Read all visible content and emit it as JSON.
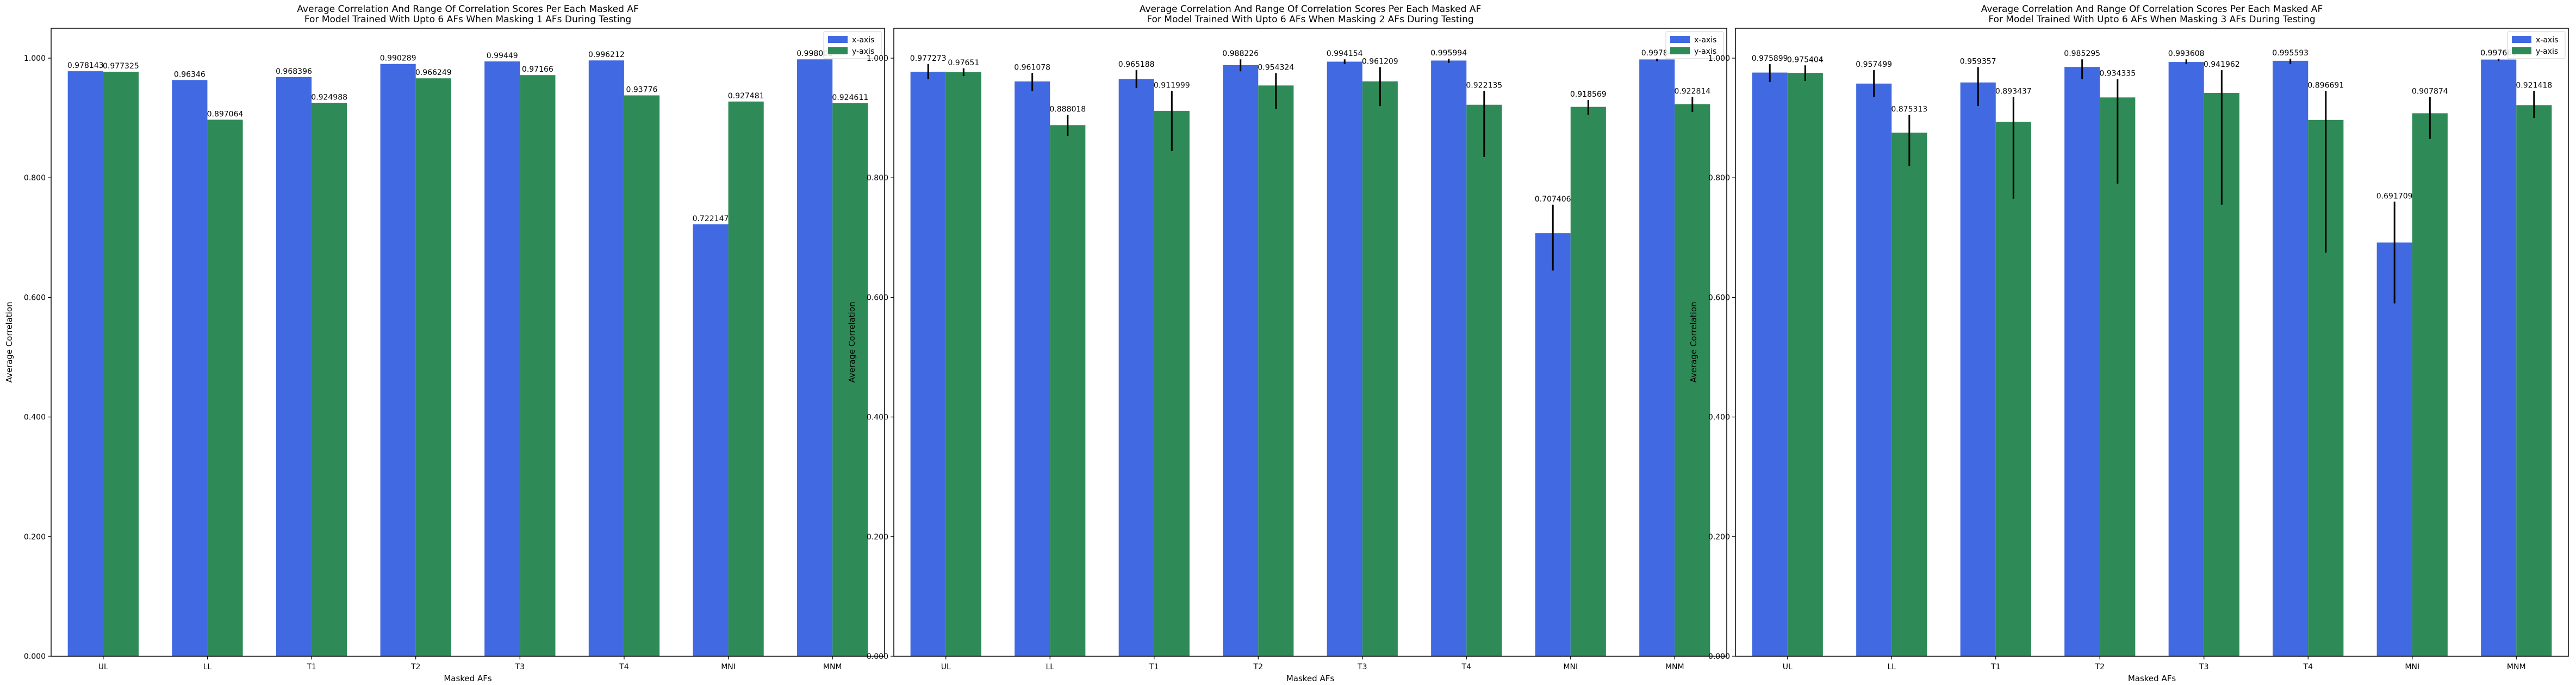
{
  "colors": {
    "x_axis": "#4169e1",
    "y_axis": "#2e8b57",
    "error_bar": "#000000",
    "axes": "#000000"
  },
  "chart_data": [
    {
      "type": "bar",
      "title_lines": [
        "Average Correlation And Range Of Correlation Scores Per Each Masked AF",
        "For Model Trained With Upto 6 AFs When Masking 1 AFs During Testing"
      ],
      "xlabel": "Masked AFs",
      "ylabel": "Average Correlation",
      "ylim": [
        0,
        1.05
      ],
      "yticks": [
        "0.000",
        "0.200",
        "0.400",
        "0.600",
        "0.800",
        "1.000"
      ],
      "ytick_values": [
        0,
        0.2,
        0.4,
        0.6,
        0.8,
        1.0
      ],
      "legend_placement": "top-right",
      "categories": [
        "UL",
        "LL",
        "T1",
        "T2",
        "T3",
        "T4",
        "MNI",
        "MNM"
      ],
      "series": [
        {
          "name": "x-axis",
          "values": [
            0.978143,
            0.96346,
            0.968396,
            0.990289,
            0.99449,
            0.996212,
            0.722147,
            0.998005
          ],
          "labels": [
            "0.978143",
            "0.96346",
            "0.968396",
            "0.990289",
            "0.99449",
            "0.996212",
            "0.722147",
            "0.998005"
          ]
        },
        {
          "name": "y-axis",
          "values": [
            0.977325,
            0.897064,
            0.924988,
            0.966249,
            0.97166,
            0.93776,
            0.927481,
            0.924611
          ],
          "labels": [
            "0.977325",
            "0.897064",
            "0.924988",
            "0.966249",
            "0.97166",
            "0.93776",
            "0.927481",
            "0.924611"
          ]
        }
      ]
    },
    {
      "type": "bar",
      "title_lines": [
        "Average Correlation And Range Of Correlation Scores Per Each Masked AF",
        "For Model Trained With Upto 6 AFs When Masking 2 AFs During Testing"
      ],
      "xlabel": "Masked AFs",
      "ylabel": "Average Correlation",
      "ylim": [
        0,
        1.05
      ],
      "yticks": [
        "0.000",
        "0.200",
        "0.400",
        "0.600",
        "0.800",
        "1.000"
      ],
      "ytick_values": [
        0,
        0.2,
        0.4,
        0.6,
        0.8,
        1.0
      ],
      "legend_placement": "top-right",
      "categories": [
        "UL",
        "LL",
        "T1",
        "T2",
        "T3",
        "T4",
        "MNI",
        "MNM"
      ],
      "series": [
        {
          "name": "x-axis",
          "values": [
            0.977273,
            0.961078,
            0.965188,
            0.988226,
            0.994154,
            0.995994,
            0.707406,
            0.99784
          ],
          "labels": [
            "0.977273",
            "0.961078",
            "0.965188",
            "0.988226",
            "0.994154",
            "0.995994",
            "0.707406",
            "0.99784"
          ],
          "err": [
            [
              0.965,
              0.99
            ],
            [
              0.945,
              0.975
            ],
            [
              0.95,
              0.98
            ],
            [
              0.978,
              0.998
            ],
            [
              0.99,
              0.998
            ],
            [
              0.992,
              0.999
            ],
            [
              0.645,
              0.755
            ],
            [
              0.995,
              0.999
            ]
          ]
        },
        {
          "name": "y-axis",
          "values": [
            0.97651,
            0.888018,
            0.911999,
            0.954324,
            0.961209,
            0.922135,
            0.918569,
            0.922814
          ],
          "labels": [
            "0.97651",
            "0.888018",
            "0.911999",
            "0.954324",
            "0.961209",
            "0.922135",
            "0.918569",
            "0.922814"
          ],
          "err": [
            [
              0.97,
              0.983
            ],
            [
              0.87,
              0.905
            ],
            [
              0.845,
              0.945
            ],
            [
              0.915,
              0.975
            ],
            [
              0.92,
              0.985
            ],
            [
              0.835,
              0.945
            ],
            [
              0.905,
              0.93
            ],
            [
              0.91,
              0.935
            ]
          ]
        }
      ]
    },
    {
      "type": "bar",
      "title_lines": [
        "Average Correlation And Range Of Correlation Scores Per Each Masked AF",
        "For Model Trained With Upto 6 AFs When Masking 3 AFs During Testing"
      ],
      "xlabel": "Masked AFs",
      "ylabel": "Average Correlation",
      "ylim": [
        0,
        1.05
      ],
      "yticks": [
        "0.000",
        "0.200",
        "0.400",
        "0.600",
        "0.800",
        "1.000"
      ],
      "ytick_values": [
        0,
        0.2,
        0.4,
        0.6,
        0.8,
        1.0
      ],
      "legend_placement": "top-right",
      "categories": [
        "UL",
        "LL",
        "T1",
        "T2",
        "T3",
        "T4",
        "MNI",
        "MNM"
      ],
      "series": [
        {
          "name": "x-axis",
          "values": [
            0.975899,
            0.957499,
            0.959357,
            0.985295,
            0.993608,
            0.995593,
            0.691709,
            0.997661
          ],
          "labels": [
            "0.975899",
            "0.957499",
            "0.959357",
            "0.985295",
            "0.993608",
            "0.995593",
            "0.691709",
            "0.997661"
          ],
          "err": [
            [
              0.96,
              0.99
            ],
            [
              0.935,
              0.98
            ],
            [
              0.92,
              0.985
            ],
            [
              0.965,
              0.998
            ],
            [
              0.99,
              0.998
            ],
            [
              0.99,
              0.999
            ],
            [
              0.59,
              0.76
            ],
            [
              0.995,
              0.999
            ]
          ]
        },
        {
          "name": "y-axis",
          "values": [
            0.975404,
            0.875313,
            0.893437,
            0.934335,
            0.941962,
            0.896691,
            0.907874,
            0.921418
          ],
          "labels": [
            "0.975404",
            "0.875313",
            "0.893437",
            "0.934335",
            "0.941962",
            "0.896691",
            "0.907874",
            "0.921418"
          ],
          "err": [
            [
              0.962,
              0.988
            ],
            [
              0.82,
              0.905
            ],
            [
              0.765,
              0.935
            ],
            [
              0.79,
              0.965
            ],
            [
              0.755,
              0.98
            ],
            [
              0.675,
              0.945
            ],
            [
              0.865,
              0.935
            ],
            [
              0.9,
              0.945
            ]
          ]
        }
      ]
    }
  ]
}
